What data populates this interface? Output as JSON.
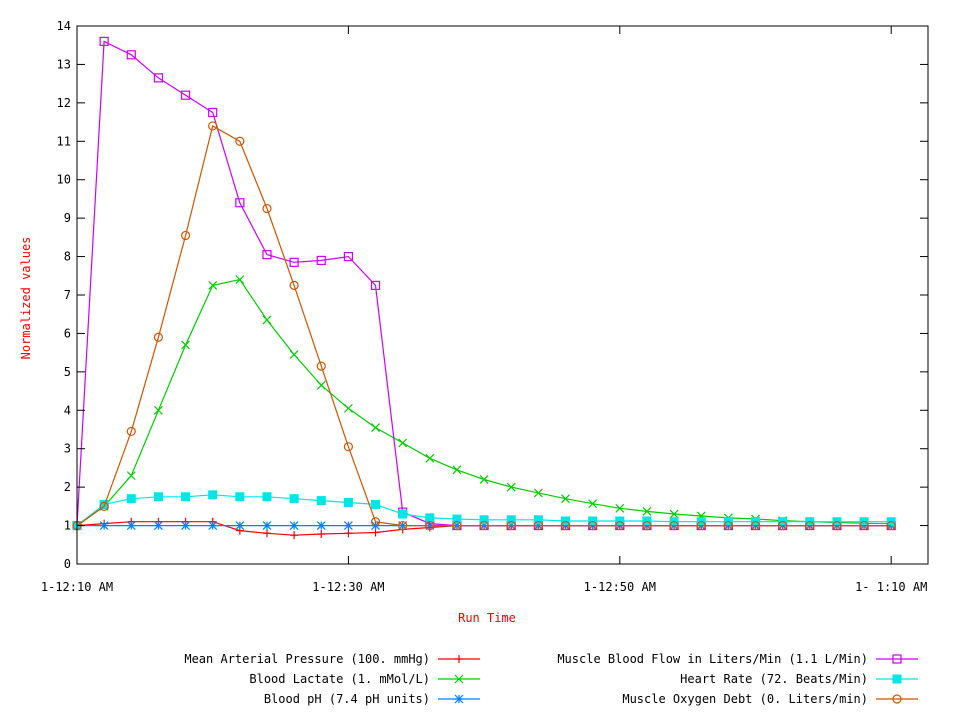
{
  "chart_data": {
    "type": "line",
    "title": "",
    "xlabel": "Run Time",
    "ylabel": "Normalized values",
    "xlim": [
      0,
      60
    ],
    "ylim": [
      0,
      14
    ],
    "x_unit": "minutes",
    "x_tick_values": [
      0,
      20,
      40,
      60
    ],
    "x_tick_labels": [
      "1-12:10 AM",
      "1-12:30 AM",
      "1-12:50 AM",
      "1- 1:10 AM"
    ],
    "y_ticks": [
      0,
      1,
      2,
      3,
      4,
      5,
      6,
      7,
      8,
      9,
      10,
      11,
      12,
      13,
      14
    ],
    "grid": false,
    "legend_position": "bottom",
    "label_color": "#ff0000",
    "series": [
      {
        "name": "Mean Arterial Pressure (100. mmHg)",
        "color": "#ff0000",
        "marker": "plus",
        "points": [
          [
            0,
            1.0
          ],
          [
            2,
            1.05
          ],
          [
            4,
            1.1
          ],
          [
            6,
            1.1
          ],
          [
            8,
            1.1
          ],
          [
            10,
            1.1
          ],
          [
            12,
            0.87
          ],
          [
            14,
            0.8
          ],
          [
            16,
            0.75
          ],
          [
            18,
            0.78
          ],
          [
            20,
            0.8
          ],
          [
            22,
            0.82
          ],
          [
            24,
            0.9
          ],
          [
            26,
            0.95
          ],
          [
            28,
            1.0
          ],
          [
            30,
            1.0
          ],
          [
            32,
            1.0
          ],
          [
            34,
            1.0
          ],
          [
            36,
            1.0
          ],
          [
            38,
            1.0
          ],
          [
            40,
            1.0
          ],
          [
            42,
            1.0
          ],
          [
            44,
            1.0
          ],
          [
            46,
            1.0
          ],
          [
            48,
            1.0
          ],
          [
            50,
            1.0
          ],
          [
            52,
            1.0
          ],
          [
            54,
            1.0
          ],
          [
            56,
            1.0
          ],
          [
            58,
            1.0
          ],
          [
            60,
            1.0
          ]
        ]
      },
      {
        "name": "Blood Lactate (1. mMol/L)",
        "color": "#00cc00",
        "marker": "cross",
        "points": [
          [
            0,
            1.0
          ],
          [
            2,
            1.5
          ],
          [
            4,
            2.3
          ],
          [
            6,
            4.0
          ],
          [
            8,
            5.7
          ],
          [
            10,
            7.25
          ],
          [
            12,
            7.4
          ],
          [
            14,
            6.35
          ],
          [
            16,
            5.45
          ],
          [
            18,
            4.65
          ],
          [
            20,
            4.05
          ],
          [
            22,
            3.55
          ],
          [
            24,
            3.15
          ],
          [
            26,
            2.75
          ],
          [
            28,
            2.45
          ],
          [
            30,
            2.2
          ],
          [
            32,
            2.0
          ],
          [
            34,
            1.85
          ],
          [
            36,
            1.7
          ],
          [
            38,
            1.57
          ],
          [
            40,
            1.45
          ],
          [
            42,
            1.37
          ],
          [
            44,
            1.3
          ],
          [
            46,
            1.25
          ],
          [
            48,
            1.2
          ],
          [
            50,
            1.17
          ],
          [
            52,
            1.13
          ],
          [
            54,
            1.1
          ],
          [
            56,
            1.08
          ],
          [
            58,
            1.06
          ],
          [
            60,
            1.05
          ]
        ]
      },
      {
        "name": "Blood pH (7.4 pH units)",
        "color": "#0080ff",
        "marker": "asterisk",
        "points": [
          [
            0,
            1.0
          ],
          [
            2,
            1.0
          ],
          [
            4,
            1.0
          ],
          [
            6,
            1.0
          ],
          [
            8,
            1.0
          ],
          [
            10,
            1.0
          ],
          [
            12,
            1.0
          ],
          [
            14,
            1.0
          ],
          [
            16,
            1.0
          ],
          [
            18,
            1.0
          ],
          [
            20,
            1.0
          ],
          [
            22,
            1.0
          ],
          [
            24,
            1.0
          ],
          [
            26,
            1.0
          ],
          [
            28,
            1.0
          ],
          [
            30,
            1.0
          ],
          [
            32,
            1.0
          ],
          [
            34,
            1.0
          ],
          [
            36,
            1.0
          ],
          [
            38,
            1.0
          ],
          [
            40,
            1.0
          ],
          [
            42,
            1.0
          ],
          [
            44,
            1.0
          ],
          [
            46,
            1.0
          ],
          [
            48,
            1.0
          ],
          [
            50,
            1.0
          ],
          [
            52,
            1.0
          ],
          [
            54,
            1.0
          ],
          [
            56,
            1.0
          ],
          [
            58,
            1.0
          ],
          [
            60,
            1.0
          ]
        ]
      },
      {
        "name": "Muscle Blood Flow in Liters/Min (1.1 L/Min)",
        "color": "#cc00ff",
        "marker": "square-open",
        "points": [
          [
            0,
            1.0
          ],
          [
            2,
            13.6
          ],
          [
            4,
            13.25
          ],
          [
            6,
            12.65
          ],
          [
            8,
            12.2
          ],
          [
            10,
            11.75
          ],
          [
            12,
            9.4
          ],
          [
            14,
            8.05
          ],
          [
            16,
            7.85
          ],
          [
            18,
            7.9
          ],
          [
            20,
            8.0
          ],
          [
            22,
            7.25
          ],
          [
            24,
            1.35
          ],
          [
            26,
            1.05
          ],
          [
            28,
            1.0
          ],
          [
            30,
            1.0
          ],
          [
            32,
            1.0
          ],
          [
            34,
            1.0
          ],
          [
            36,
            1.0
          ],
          [
            38,
            1.0
          ],
          [
            40,
            1.0
          ],
          [
            42,
            1.0
          ],
          [
            44,
            1.0
          ],
          [
            46,
            1.0
          ],
          [
            48,
            1.0
          ],
          [
            50,
            1.0
          ],
          [
            52,
            1.0
          ],
          [
            54,
            1.0
          ],
          [
            56,
            1.0
          ],
          [
            58,
            1.0
          ],
          [
            60,
            1.0
          ]
        ]
      },
      {
        "name": "Heart Rate (72. Beats/Min)",
        "color": "#00e5e5",
        "marker": "square-filled",
        "points": [
          [
            0,
            1.0
          ],
          [
            2,
            1.55
          ],
          [
            4,
            1.7
          ],
          [
            6,
            1.75
          ],
          [
            8,
            1.75
          ],
          [
            10,
            1.8
          ],
          [
            12,
            1.75
          ],
          [
            14,
            1.75
          ],
          [
            16,
            1.7
          ],
          [
            18,
            1.65
          ],
          [
            20,
            1.6
          ],
          [
            22,
            1.55
          ],
          [
            24,
            1.3
          ],
          [
            26,
            1.2
          ],
          [
            28,
            1.17
          ],
          [
            30,
            1.15
          ],
          [
            32,
            1.15
          ],
          [
            34,
            1.15
          ],
          [
            36,
            1.12
          ],
          [
            38,
            1.12
          ],
          [
            40,
            1.12
          ],
          [
            42,
            1.12
          ],
          [
            44,
            1.1
          ],
          [
            46,
            1.1
          ],
          [
            48,
            1.1
          ],
          [
            50,
            1.1
          ],
          [
            52,
            1.1
          ],
          [
            54,
            1.1
          ],
          [
            56,
            1.1
          ],
          [
            58,
            1.1
          ],
          [
            60,
            1.1
          ]
        ]
      },
      {
        "name": "Muscle Oxygen Debt (0. Liters/min)",
        "color": "#cc5500",
        "marker": "circle-open",
        "points": [
          [
            0,
            1.0
          ],
          [
            2,
            1.5
          ],
          [
            4,
            3.45
          ],
          [
            6,
            5.9
          ],
          [
            8,
            8.55
          ],
          [
            10,
            11.4
          ],
          [
            12,
            11.0
          ],
          [
            14,
            9.25
          ],
          [
            16,
            7.25
          ],
          [
            18,
            5.15
          ],
          [
            20,
            3.05
          ],
          [
            22,
            1.1
          ],
          [
            24,
            1.0
          ],
          [
            26,
            1.0
          ],
          [
            28,
            1.0
          ],
          [
            30,
            1.0
          ],
          [
            32,
            1.0
          ],
          [
            34,
            1.0
          ],
          [
            36,
            1.0
          ],
          [
            38,
            1.0
          ],
          [
            40,
            1.0
          ],
          [
            42,
            1.0
          ],
          [
            44,
            1.0
          ],
          [
            46,
            1.0
          ],
          [
            48,
            1.0
          ],
          [
            50,
            1.0
          ],
          [
            52,
            1.0
          ],
          [
            54,
            1.0
          ],
          [
            56,
            1.0
          ],
          [
            58,
            1.0
          ],
          [
            60,
            1.0
          ]
        ]
      }
    ]
  }
}
